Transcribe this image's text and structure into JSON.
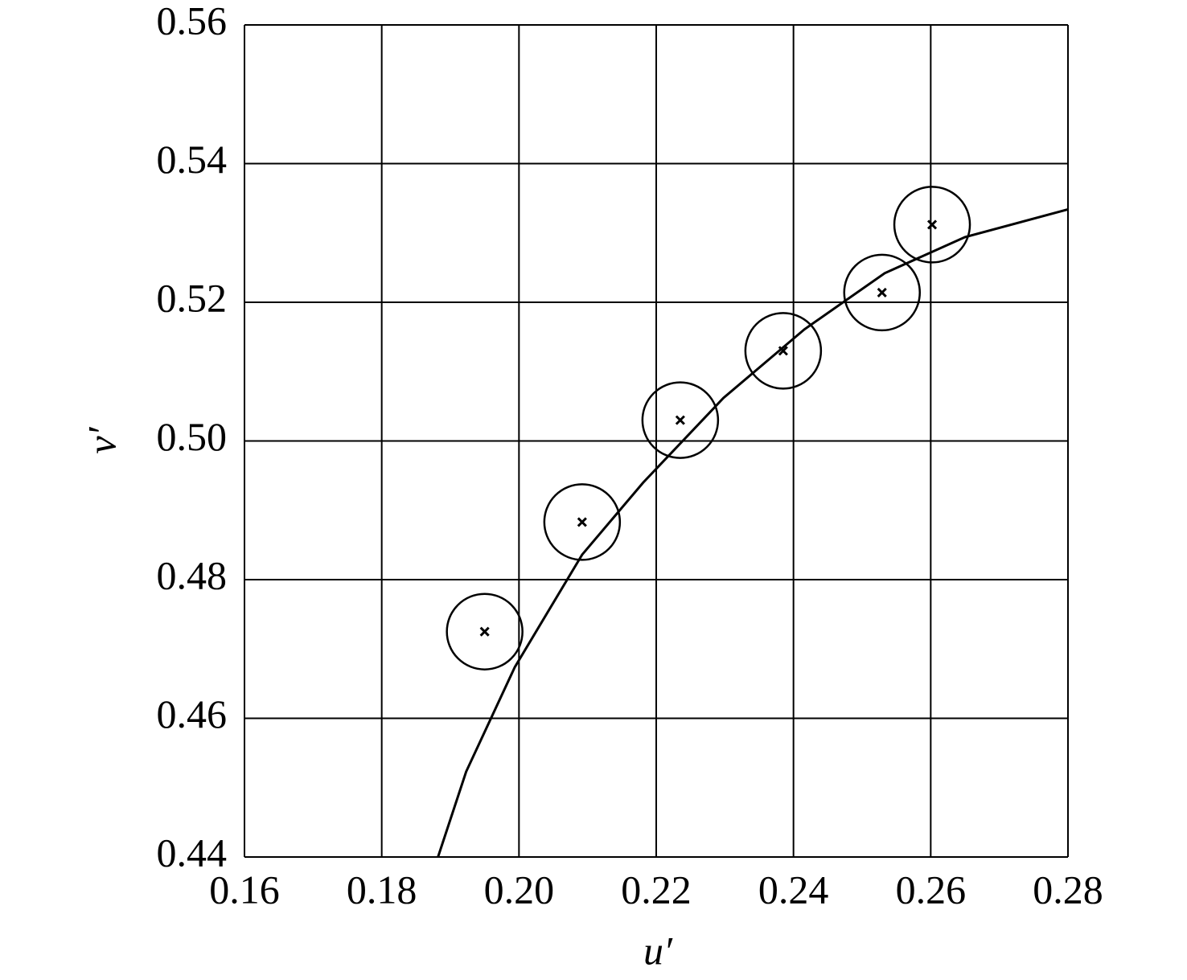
{
  "chart_data": {
    "type": "scatter",
    "x_label": "u′",
    "y_label": "v′",
    "xlim": [
      0.16,
      0.28
    ],
    "ylim": [
      0.44,
      0.56
    ],
    "xticks": [
      0.16,
      0.18,
      {
        "value": 0.2,
        "label": "0.20"
      },
      0.22,
      0.24,
      0.26,
      0.28
    ],
    "yticks": [
      0.44,
      0.46,
      0.48,
      {
        "value": 0.5,
        "label": "0.50"
      },
      0.52,
      0.54,
      0.56
    ],
    "grid": true,
    "series": [
      {
        "kind": "line",
        "color": "#000000",
        "x": [
          0.1882,
          0.1923,
          0.1994,
          0.2092,
          0.2181,
          0.2298,
          0.2416,
          0.2533,
          0.265,
          0.28
        ],
        "values": [
          0.44,
          0.4523,
          0.4674,
          0.4836,
          0.494,
          0.5062,
          0.5161,
          0.5242,
          0.5294,
          0.5334
        ]
      },
      {
        "kind": "marker",
        "color": "#000000",
        "x": [
          0.195,
          0.2092,
          0.2235,
          0.2385,
          0.2529,
          0.2602
        ],
        "values": [
          0.4725,
          0.4883,
          0.503,
          0.513,
          0.5214,
          0.5312
        ]
      }
    ]
  }
}
